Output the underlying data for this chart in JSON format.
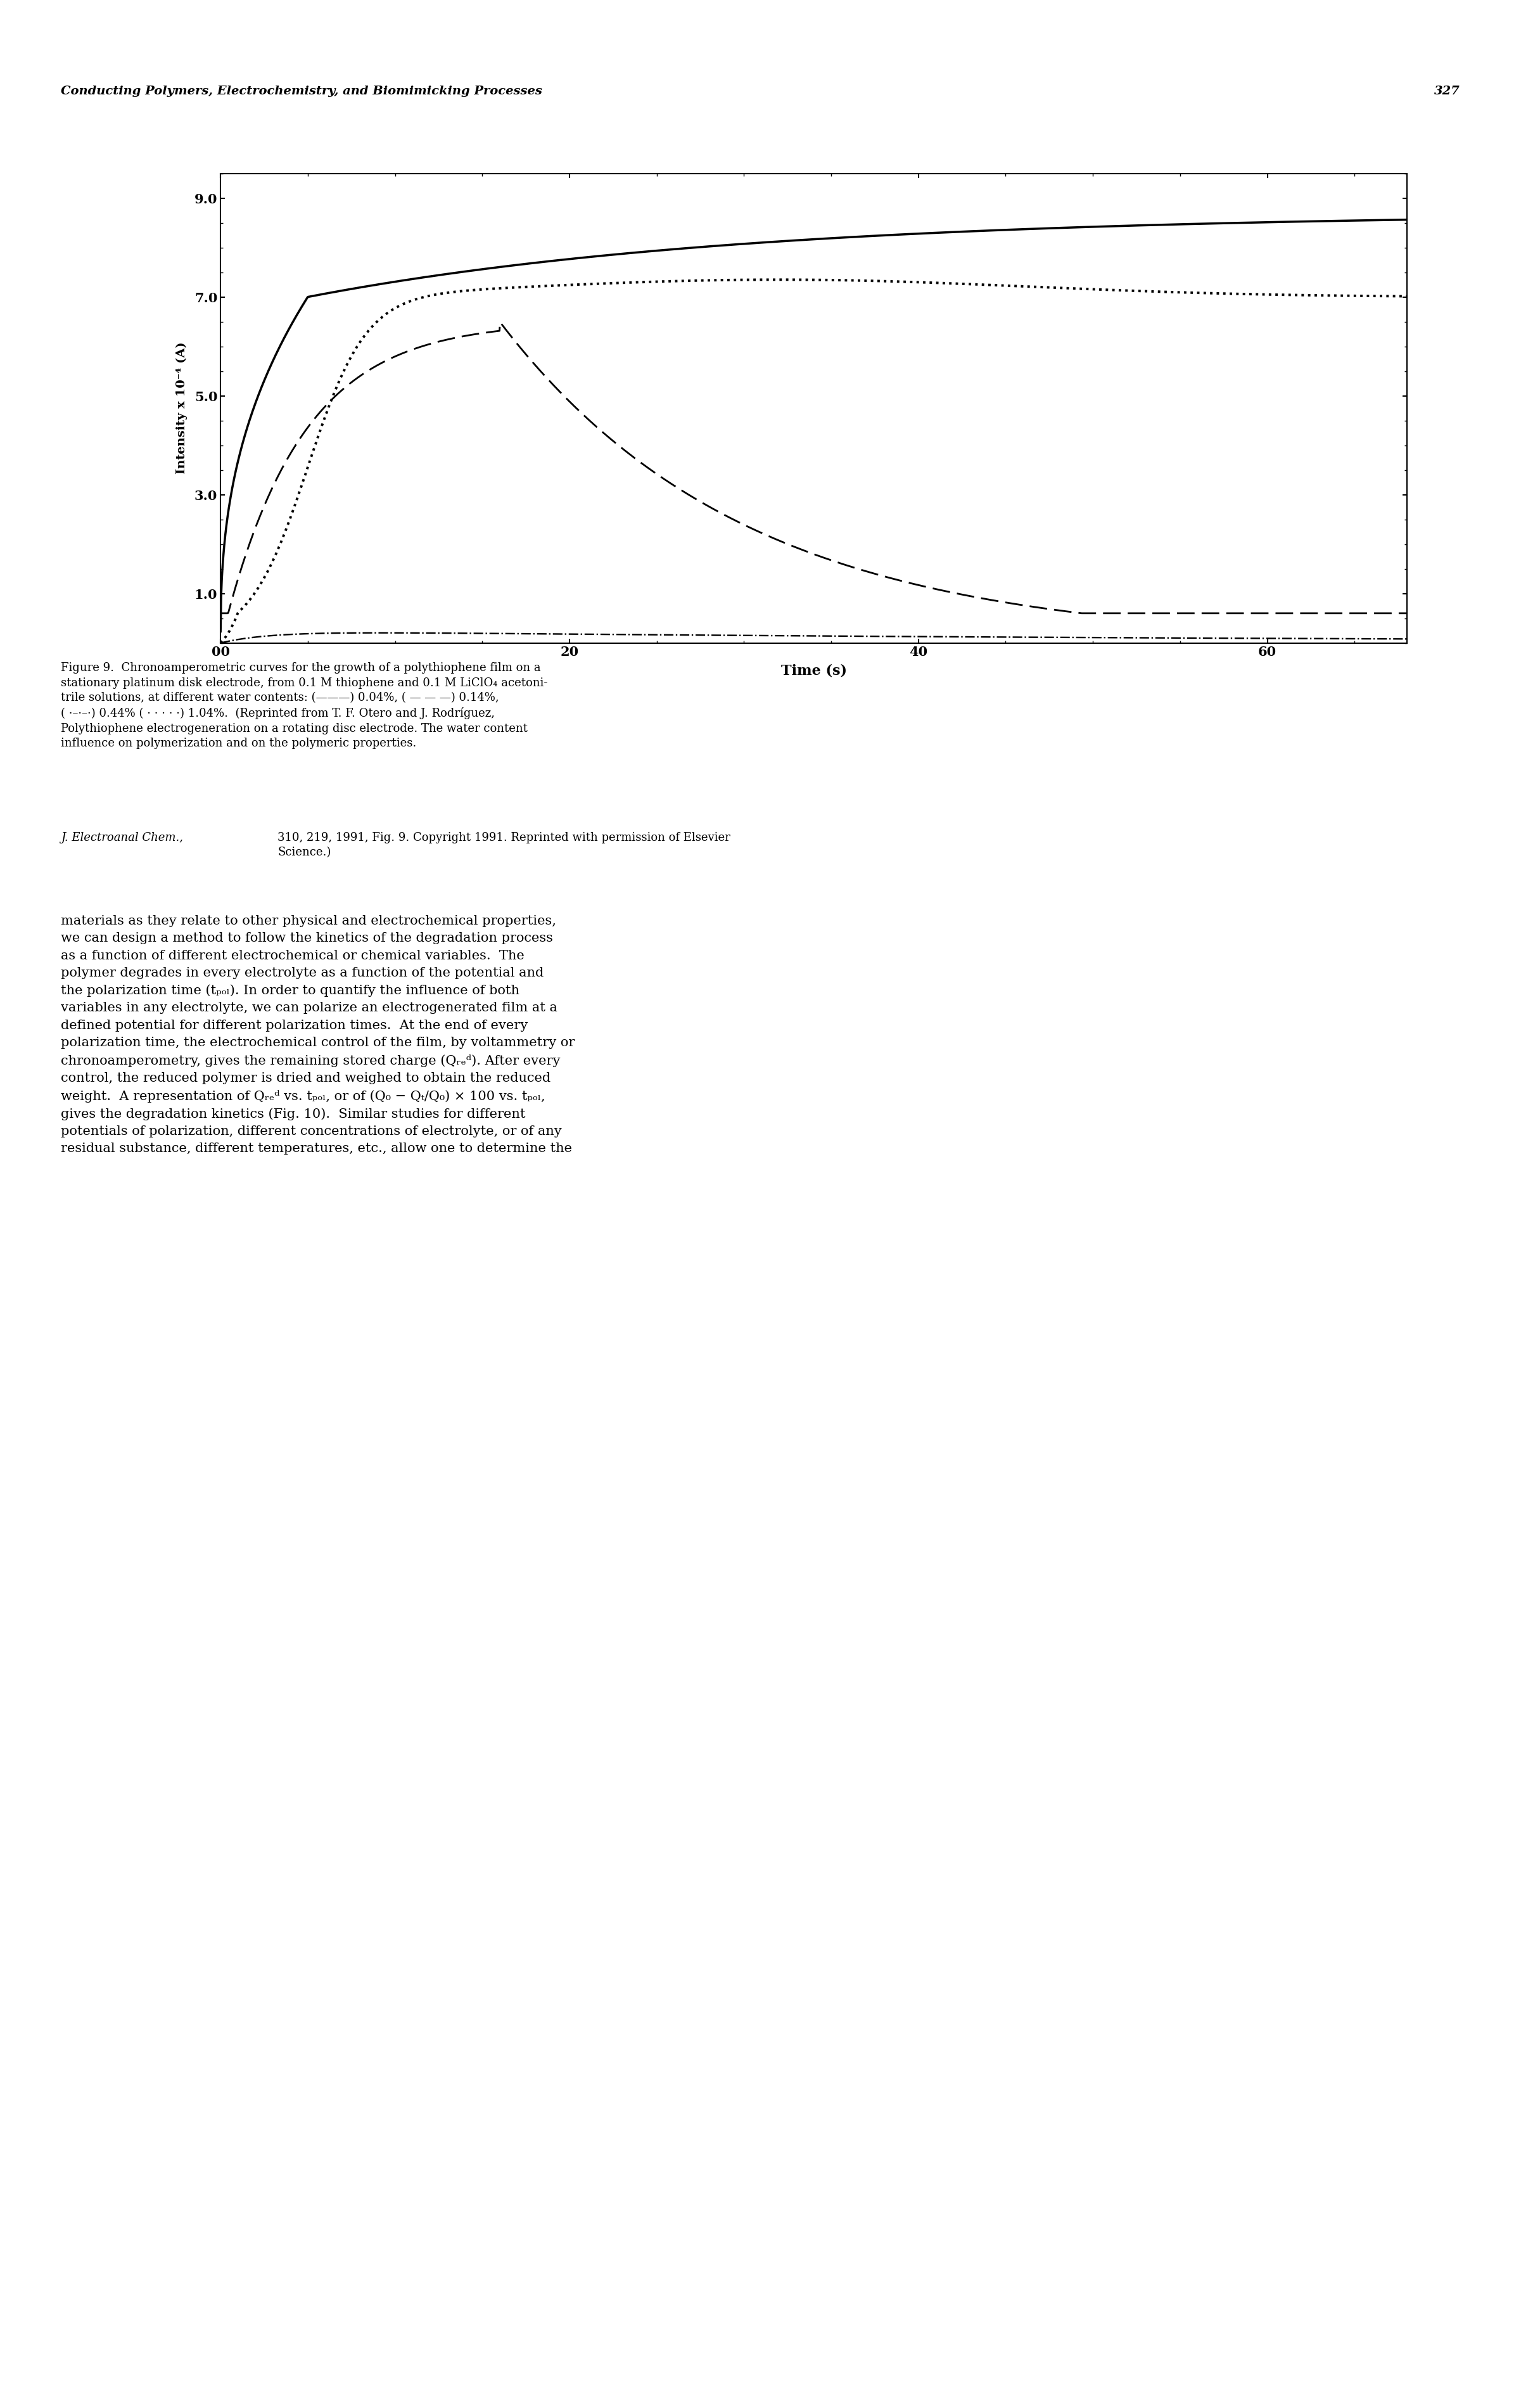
{
  "title_header": "Conducting Polymers, Electrochemistry, and Biomimicking Processes",
  "page_number": "327",
  "xlabel": "Time (s)",
  "ylabel": "Intensity x 10⁻⁴ (A)",
  "xlim": [
    0,
    68
  ],
  "ylim": [
    0,
    9.5
  ],
  "yticks": [
    1.0,
    3.0,
    5.0,
    7.0,
    9.0
  ],
  "xticks": [
    0,
    20,
    40,
    60
  ],
  "xtick_labels": [
    "00",
    "20",
    "40",
    "60"
  ],
  "background_color": "#ffffff"
}
